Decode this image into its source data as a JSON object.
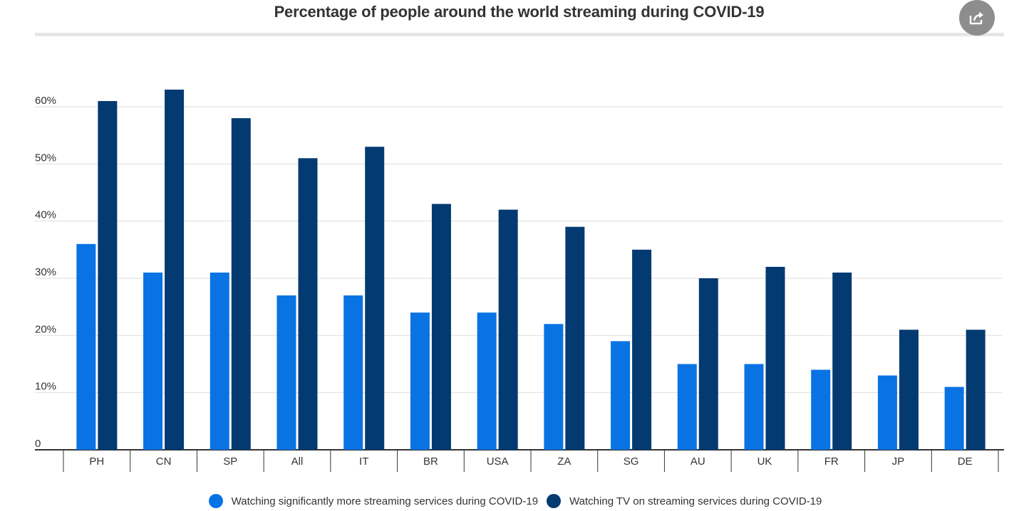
{
  "colors": {
    "series1": "#0a73e4",
    "series2": "#043a72",
    "grid": "#dedede",
    "axis": "#333333",
    "share_button": "#8d8d8d"
  },
  "share_button": {
    "icon": "share-icon"
  },
  "chart_data": {
    "type": "bar",
    "title": "Percentage of people around the world streaming during COVID-19",
    "xlabel": "",
    "ylabel": "",
    "ylim": [
      0,
      70
    ],
    "grid": true,
    "legend_position": "bottom",
    "y_ticks": [
      {
        "value": 0,
        "label": "0"
      },
      {
        "value": 10,
        "label": "10%"
      },
      {
        "value": 20,
        "label": "20%"
      },
      {
        "value": 30,
        "label": "30%"
      },
      {
        "value": 40,
        "label": "40%"
      },
      {
        "value": 50,
        "label": "50%"
      },
      {
        "value": 60,
        "label": "60%"
      }
    ],
    "categories": [
      "PH",
      "CN",
      "SP",
      "All",
      "IT",
      "BR",
      "USA",
      "ZA",
      "SG",
      "AU",
      "UK",
      "FR",
      "JP",
      "DE"
    ],
    "series": [
      {
        "name": "Watching significantly more streaming services during COVID-19",
        "values": [
          36,
          31,
          31,
          27,
          27,
          24,
          24,
          22,
          19,
          15,
          15,
          14,
          13,
          11
        ]
      },
      {
        "name": "Watching TV on streaming services during COVID-19",
        "values": [
          61,
          63,
          58,
          51,
          53,
          43,
          42,
          39,
          35,
          30,
          32,
          31,
          21,
          21
        ]
      }
    ]
  }
}
